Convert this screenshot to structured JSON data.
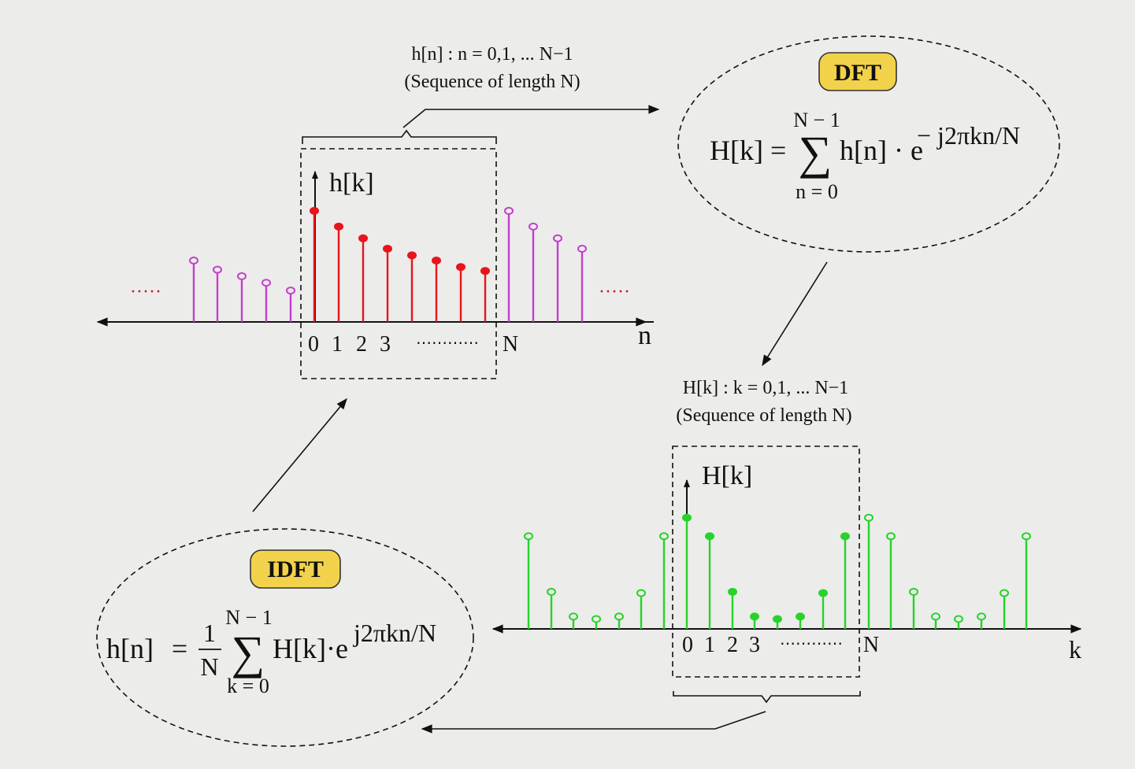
{
  "top": {
    "caption_line1": "h[n] :  n = 0,1, ... N−1",
    "caption_line2": "(Sequence of length N)",
    "axis_label_y": "h[k]",
    "axis_label_x": "n",
    "ticks": [
      "0",
      "1",
      "2",
      "3",
      "N"
    ],
    "ellipsis": "⋯⋯⋯⋯",
    "side_dots": "·····",
    "colors": {
      "main": "#e8141c",
      "periodic": "#c43fd0"
    },
    "main_values": [
      0.85,
      0.73,
      0.64,
      0.56,
      0.51,
      0.47,
      0.42,
      0.39
    ],
    "left_values": [
      0.47,
      0.4,
      0.35,
      0.3,
      0.24
    ],
    "right_values": [
      0.85,
      0.73,
      0.64,
      0.56
    ]
  },
  "dft": {
    "badge": "DFT",
    "lhs": "H[k] =",
    "sigma": "∑",
    "upper": "N − 1",
    "lower": "n = 0",
    "term": "h[n] · e",
    "exponent": "− j2πkn/N",
    "badge_color": "#f2d24a"
  },
  "bottom": {
    "caption_line1": "H[k] :  k = 0,1, ... N−1",
    "caption_line2": "(Sequence of length N)",
    "axis_label_y": "H[k]",
    "axis_label_x": "k",
    "ticks": [
      "0",
      "1",
      "2",
      "3",
      "N"
    ],
    "ellipsis": "⋯⋯⋯⋯",
    "color": "#27d32a",
    "left_values": [
      0.75,
      0.3,
      0.1,
      0.08,
      0.1,
      0.29,
      0.75
    ],
    "main_values": [
      0.9,
      0.75,
      0.3,
      0.1,
      0.08,
      0.1,
      0.29,
      0.75
    ],
    "right_values": [
      0.9,
      0.75,
      0.3,
      0.1,
      0.08,
      0.1,
      0.29,
      0.75
    ]
  },
  "idft": {
    "badge": "IDFT",
    "lhs": "h[n]",
    "equals": "=",
    "frac_num": "1",
    "frac_den": "N",
    "sigma": "∑",
    "upper": "N − 1",
    "lower": "k = 0",
    "term": "H[k]·e",
    "exponent": "j2πkn/N",
    "badge_color": "#f2d24a"
  }
}
